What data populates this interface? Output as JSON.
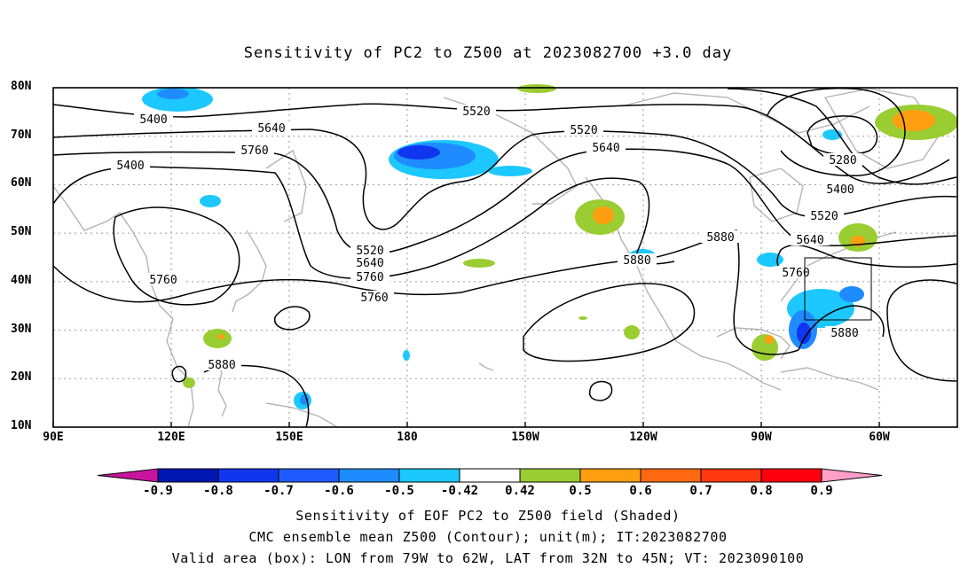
{
  "title": "Sensitivity of PC2 to Z500 at 2023082700 +3.0 day",
  "axes": {
    "lat_labels": [
      "80N",
      "70N",
      "60N",
      "50N",
      "40N",
      "30N",
      "20N",
      "10N"
    ],
    "lon_labels": [
      "90E",
      "120E",
      "150E",
      "180",
      "150W",
      "120W",
      "90W",
      "60W"
    ]
  },
  "contours": {
    "labels": [
      "5400",
      "5520",
      "5640",
      "5760",
      "5400",
      "5520",
      "5640",
      "5280",
      "5400",
      "5520",
      "5640",
      "5760",
      "5880",
      "5520",
      "5640",
      "5760",
      "5880",
      "5760",
      "5760",
      "5880",
      "5880"
    ]
  },
  "valid_box": {
    "lon": [
      "79W",
      "62W"
    ],
    "lat": [
      "32N",
      "45N"
    ]
  },
  "colorbar": {
    "labels": [
      "-0.9",
      "-0.8",
      "-0.7",
      "-0.6",
      "-0.5",
      "-0.42",
      "0.42",
      "0.5",
      "0.6",
      "0.7",
      "0.8",
      "0.9"
    ],
    "colors": [
      "#0018b0",
      "#1036f0",
      "#1e5cff",
      "#1e8cff",
      "#1cc8ff",
      "#ffffff",
      "#9acd32",
      "#ff9f10",
      "#ff6a10",
      "#ff3810",
      "#ff0010"
    ],
    "under_color": "#c8159e",
    "over_color": "#ff9fc8"
  },
  "footer": {
    "line1": "Sensitivity of EOF PC2 to Z500 field (Shaded)",
    "line2": "CMC ensemble mean Z500 (Contour); unit(m); IT:2023082700",
    "line3": "Valid area (box): LON from 79W to 62W, LAT from 32N to 45N; VT: 2023090100"
  }
}
